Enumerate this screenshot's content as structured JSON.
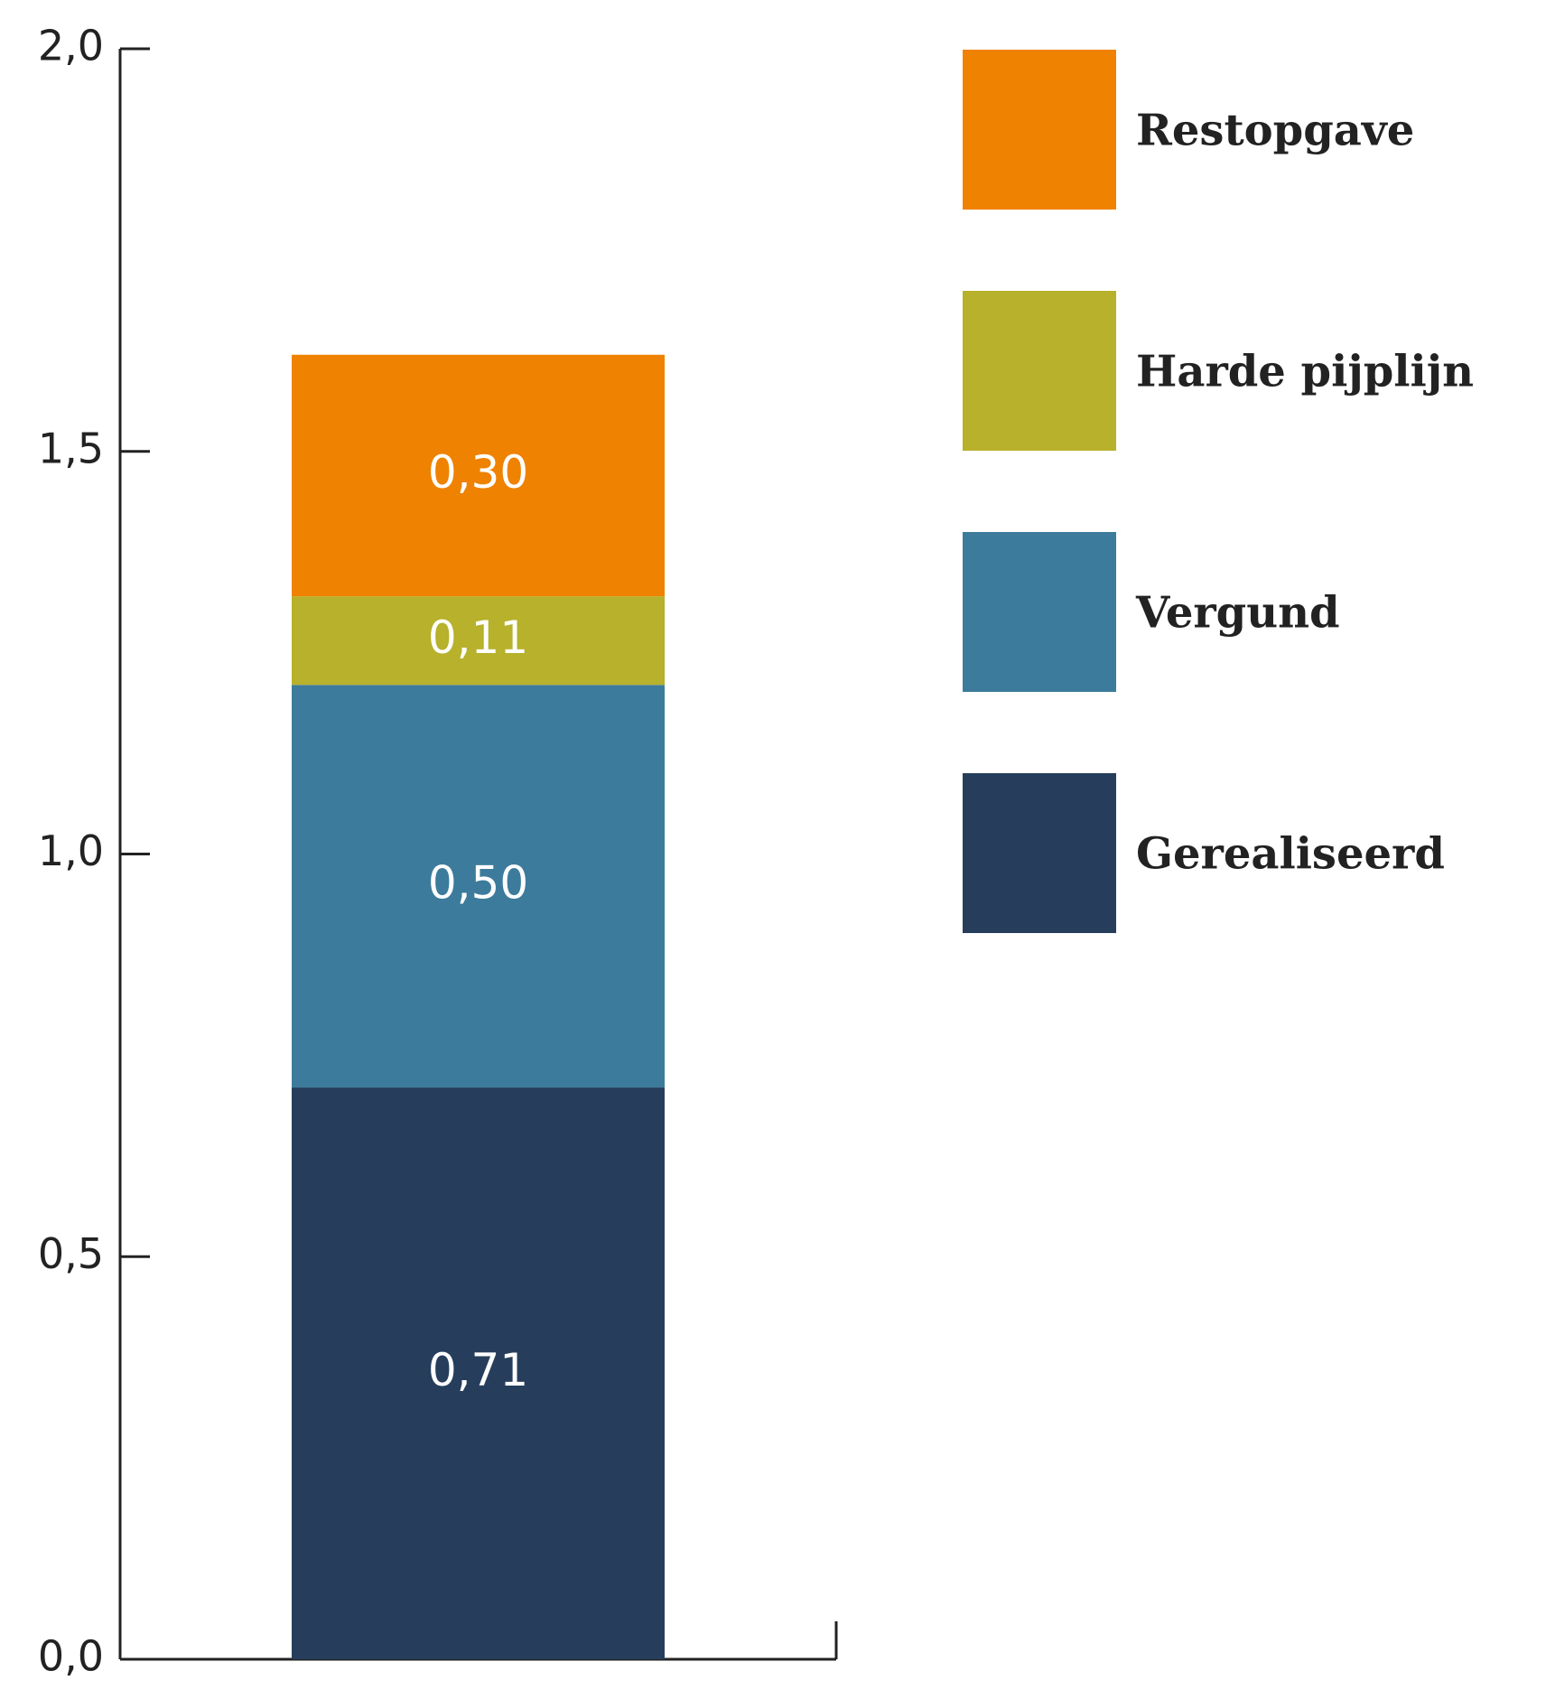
{
  "chart_data": {
    "type": "stacked-bar",
    "categories": [
      null
    ],
    "series": [
      {
        "name": "Gerealiseerd",
        "color": "#263e5c",
        "values": [
          0.71
        ],
        "value_labels": [
          "0,71"
        ]
      },
      {
        "name": "Vergund",
        "color": "#3c7b9b",
        "values": [
          0.5
        ],
        "value_labels": [
          "0,50"
        ]
      },
      {
        "name": "Harde pijplijn",
        "color": "#b7b12b",
        "values": [
          0.11
        ],
        "value_labels": [
          "0,11"
        ]
      },
      {
        "name": "Restopgave",
        "color": "#ef8200",
        "values": [
          0.3
        ],
        "value_labels": [
          "0,30"
        ]
      }
    ],
    "ylim": [
      0,
      2
    ],
    "yticks": [
      {
        "value": 0,
        "label": "0,0"
      },
      {
        "value": 0.5,
        "label": "0,5"
      },
      {
        "value": 1,
        "label": "1,0"
      },
      {
        "value": 1.5,
        "label": "1,5"
      },
      {
        "value": 2,
        "label": "2,0"
      }
    ],
    "legend": "right"
  }
}
